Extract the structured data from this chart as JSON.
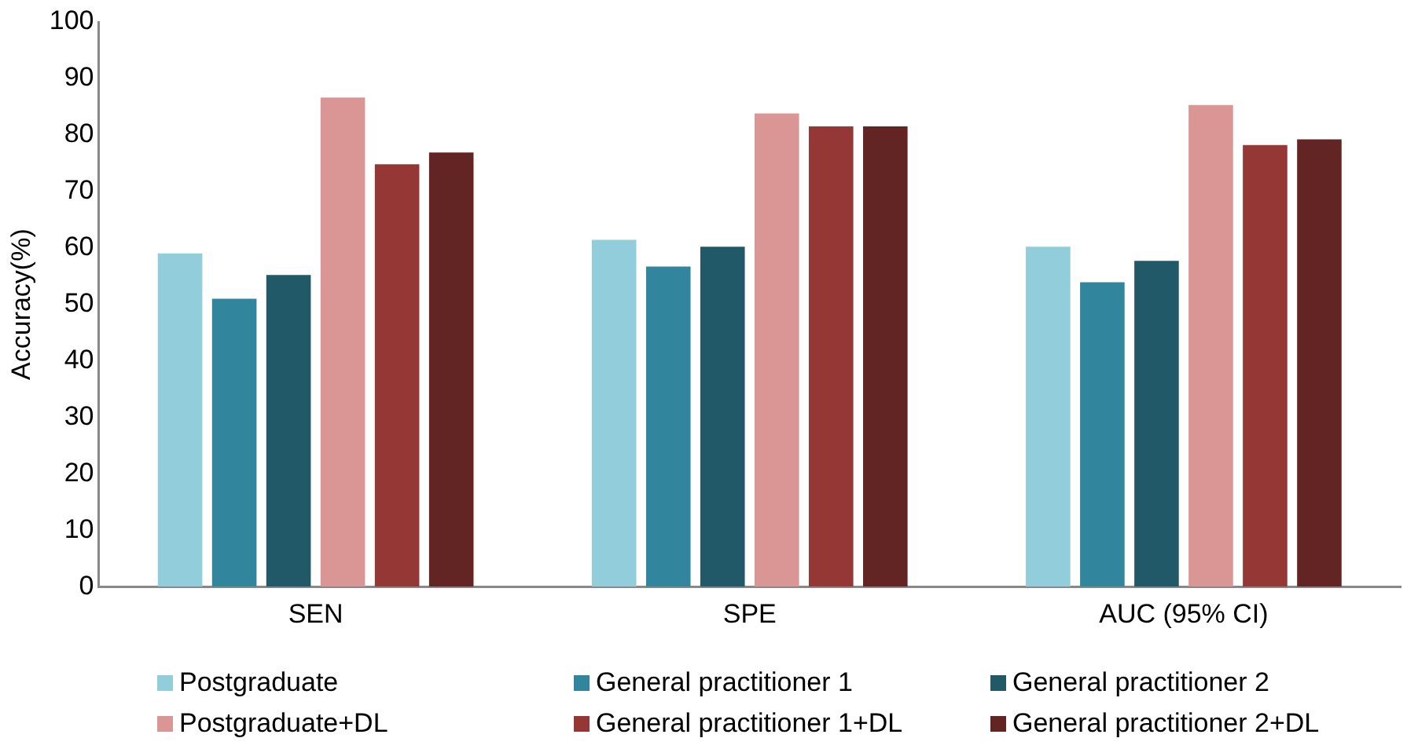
{
  "chart_data": {
    "type": "bar",
    "ylabel": "Accuracy(%)",
    "categories": [
      "SEN",
      "SPE",
      "AUC (95% CI)"
    ],
    "series": [
      {
        "name": "Postgraduate",
        "color": "#92cddc",
        "values": [
          59,
          61.4,
          60.2
        ]
      },
      {
        "name": "General practitioner 1",
        "color": "#31859c",
        "values": [
          51,
          56.7,
          53.9
        ]
      },
      {
        "name": "General practitioner 2",
        "color": "#215968",
        "values": [
          55.2,
          60.2,
          57.7
        ]
      },
      {
        "name": "Postgraduate+DL",
        "color": "#d99694",
        "values": [
          86.6,
          83.8,
          85.3
        ]
      },
      {
        "name": "General practitioner 1+DL",
        "color": "#953735",
        "values": [
          74.8,
          81.5,
          78.2
        ]
      },
      {
        "name": "General practitioner 2+DL",
        "color": "#632523",
        "values": [
          76.9,
          81.5,
          79.2
        ]
      }
    ],
    "ylim": [
      0,
      100
    ],
    "yticks": [
      0,
      10,
      20,
      30,
      40,
      50,
      60,
      70,
      80,
      90,
      100
    ],
    "grid": false,
    "legend": "bottom"
  }
}
